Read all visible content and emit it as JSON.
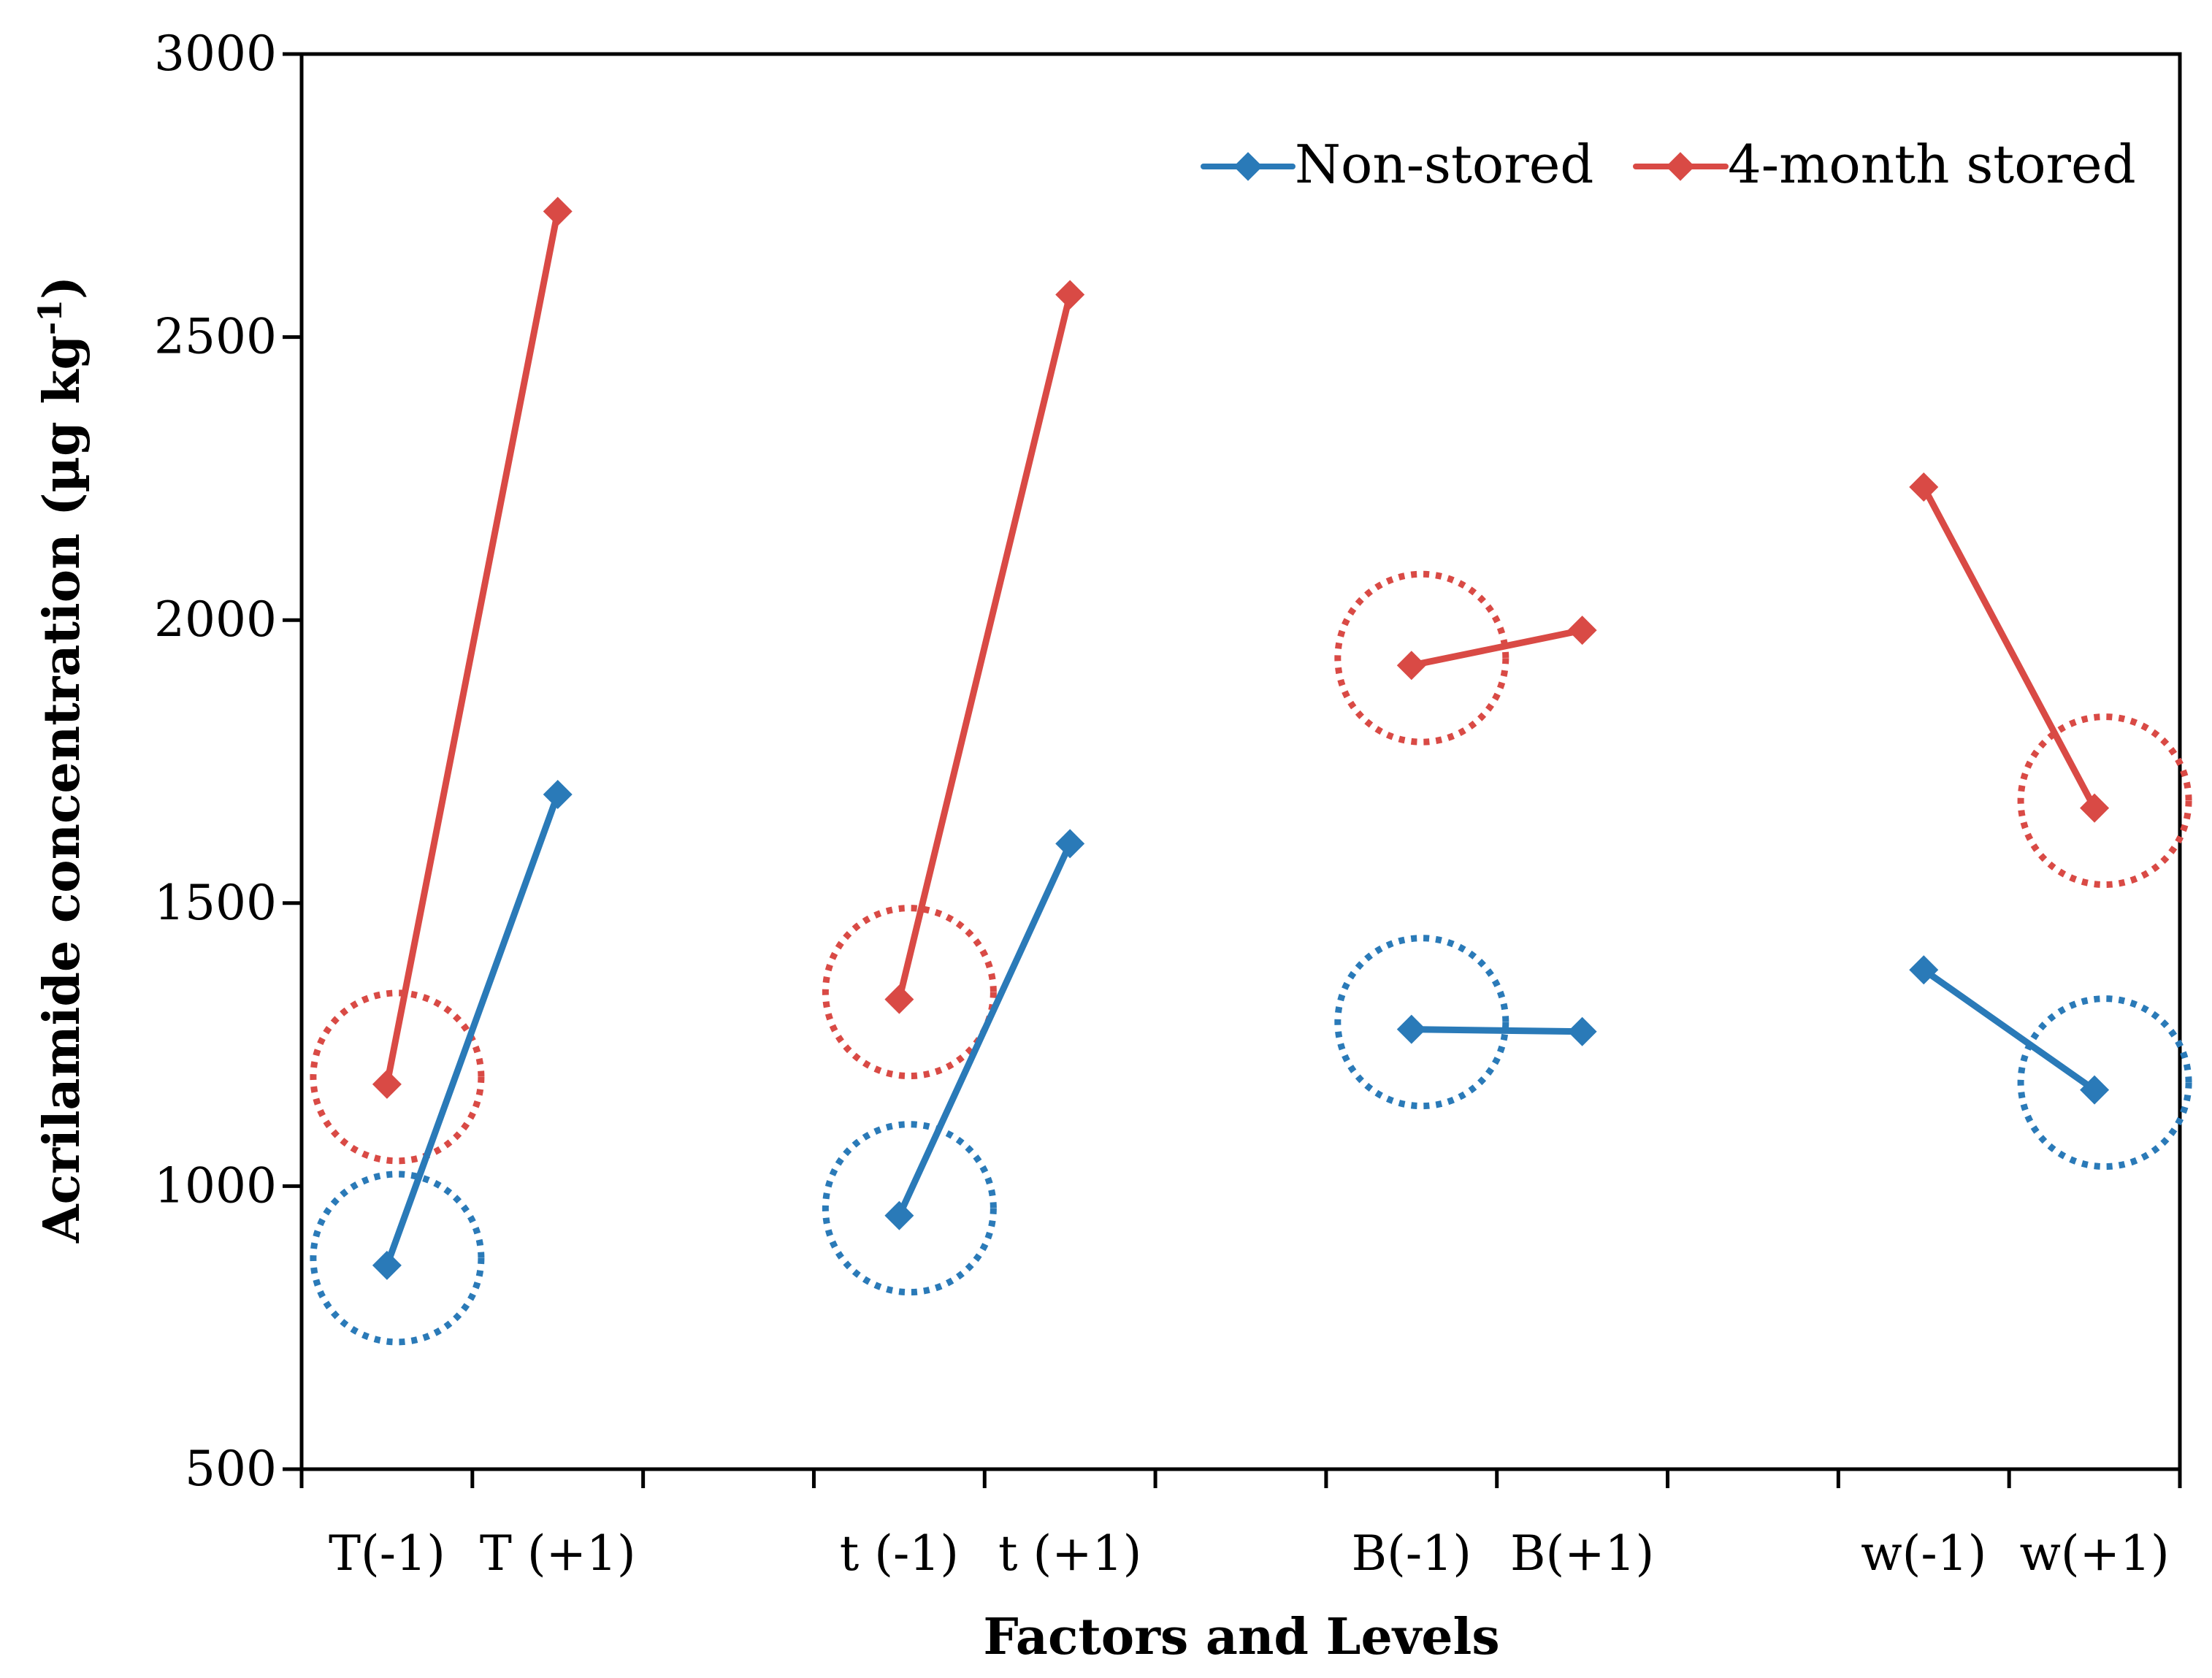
{
  "chart_data": {
    "type": "line",
    "title": "",
    "xlabel": "Factors and Levels",
    "ylabel_main": "Acrilamide concentration (µg kg",
    "ylabel_sup": "-1",
    "ylabel_close": ")",
    "ylim": [
      500,
      3000
    ],
    "yticks": [
      500,
      1000,
      1500,
      2000,
      2500,
      3000
    ],
    "categories": [
      "T(-1)",
      "T (+1)",
      "",
      "t (-1)",
      "t (+1)",
      "",
      "B(-1)",
      "B(+1)",
      "",
      "w(-1)",
      "w(+1)"
    ],
    "groups": [
      {
        "factor": "T",
        "indices": [
          0,
          1
        ]
      },
      {
        "factor": "t",
        "indices": [
          3,
          4
        ]
      },
      {
        "factor": "B",
        "indices": [
          6,
          7
        ]
      },
      {
        "factor": "w",
        "indices": [
          9,
          10
        ]
      }
    ],
    "series": [
      {
        "name": "Non-stored",
        "color": "#2a7ab8",
        "segments": [
          {
            "indices": [
              0,
              1
            ],
            "values": [
              860,
              1692
            ]
          },
          {
            "indices": [
              3,
              4
            ],
            "values": [
              948,
              1605
            ]
          },
          {
            "indices": [
              6,
              7
            ],
            "values": [
              1277,
              1273
            ]
          },
          {
            "indices": [
              9,
              10
            ],
            "values": [
              1382,
              1170
            ]
          }
        ]
      },
      {
        "name": "4-month stored",
        "color": "#d94a45",
        "segments": [
          {
            "indices": [
              0,
              1
            ],
            "values": [
              1180,
              2722
            ]
          },
          {
            "indices": [
              3,
              4
            ],
            "values": [
              1330,
              2575
            ]
          },
          {
            "indices": [
              6,
              7
            ],
            "values": [
              1920,
              1982
            ]
          },
          {
            "indices": [
              9,
              10
            ],
            "values": [
              2235,
              1668
            ]
          }
        ]
      }
    ],
    "highlight_circles": [
      {
        "series": "Non-stored",
        "index": 0,
        "value": 860
      },
      {
        "series": "4-month stored",
        "index": 0,
        "value": 1180
      },
      {
        "series": "Non-stored",
        "index": 3,
        "value": 948
      },
      {
        "series": "4-month stored",
        "index": 3,
        "value": 1330
      },
      {
        "series": "Non-stored",
        "index": 6,
        "value": 1277
      },
      {
        "series": "4-month stored",
        "index": 6,
        "value": 1920
      },
      {
        "series": "Non-stored",
        "index": 10,
        "value": 1170
      },
      {
        "series": "4-month stored",
        "index": 10,
        "value": 1668
      }
    ],
    "legend_position": "top-right"
  }
}
